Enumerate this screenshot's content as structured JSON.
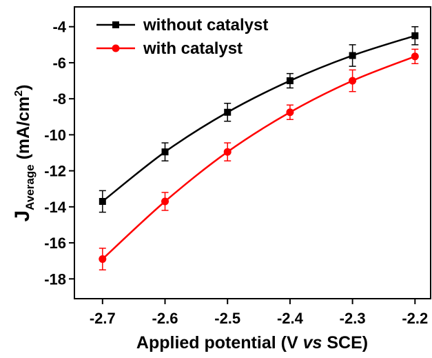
{
  "chart_data": {
    "type": "line",
    "xlabel": [
      "Applied potential (V ",
      "vs",
      " SCE)"
    ],
    "ylabel": [
      "J",
      "Average",
      " (mA/cm",
      "2",
      ")"
    ],
    "x": [
      -2.7,
      -2.6,
      -2.5,
      -2.4,
      -2.3,
      -2.2
    ],
    "series": [
      {
        "name": "without catalyst",
        "color": "#000000",
        "marker": "square",
        "values": [
          -13.7,
          -10.95,
          -8.75,
          -7.0,
          -5.6,
          -4.5
        ],
        "errors": [
          0.6,
          0.5,
          0.5,
          0.4,
          0.6,
          0.5
        ]
      },
      {
        "name": "with catalyst",
        "color": "#ff0000",
        "marker": "circle",
        "values": [
          -16.9,
          -13.7,
          -10.95,
          -8.75,
          -7.0,
          -5.65
        ],
        "errors": [
          0.6,
          0.5,
          0.5,
          0.4,
          0.6,
          0.4
        ]
      }
    ],
    "xlim": [
      -2.745,
      -2.175
    ],
    "ylim": [
      -19.1,
      -2.9
    ],
    "xticks": [
      -2.7,
      -2.6,
      -2.5,
      -2.4,
      -2.3,
      -2.2
    ],
    "yticks": [
      -18,
      -16,
      -14,
      -12,
      -10,
      -8,
      -6,
      -4
    ],
    "legend": "upper left",
    "grid": false
  }
}
